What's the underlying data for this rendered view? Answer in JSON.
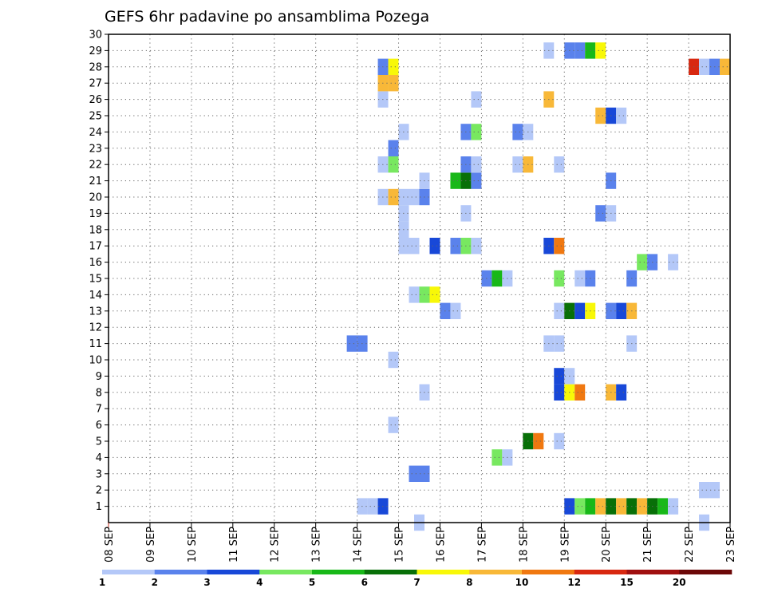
{
  "chart_data": {
    "type": "heatmap",
    "title": "GEFS 6hr padavine po ansamblima Pozega",
    "xlabel": "",
    "ylabel": "",
    "x_ticks": [
      "08 SEP",
      "09 SEP",
      "10 SEP",
      "11 SEP",
      "12 SEP",
      "13 SEP",
      "14 SEP",
      "15 SEP",
      "16 SEP",
      "17 SEP",
      "18 SEP",
      "19 SEP",
      "20 SEP",
      "21 SEP",
      "22 SEP",
      "23 SEP"
    ],
    "y_ticks": [
      "1",
      "2",
      "3",
      "4",
      "5",
      "6",
      "7",
      "8",
      "9",
      "10",
      "11",
      "12",
      "13",
      "14",
      "15",
      "16",
      "17",
      "18",
      "19",
      "20",
      "21",
      "22",
      "23",
      "24",
      "25",
      "26",
      "27",
      "28",
      "29",
      "30"
    ],
    "xlim_days": [
      0,
      15
    ],
    "ylim": [
      0,
      30
    ],
    "grid": true,
    "colorbar": {
      "levels": [
        "1",
        "2",
        "3",
        "4",
        "5",
        "6",
        "7",
        "8",
        "10",
        "12",
        "15",
        "20"
      ],
      "colors": [
        "#b4c8f8",
        "#5a82ec",
        "#1848d8",
        "#78e860",
        "#18b818",
        "#087008",
        "#f8f808",
        "#f8b838",
        "#f07810",
        "#d82810",
        "#a01010",
        "#6c0808"
      ]
    },
    "cells": [
      {
        "x": 6.125,
        "y": 1,
        "c": 0
      },
      {
        "x": 6.375,
        "y": 1,
        "c": 0
      },
      {
        "x": 6.625,
        "y": 1,
        "c": 2
      },
      {
        "x": 7.5,
        "y": 0,
        "c": 0
      },
      {
        "x": 11.125,
        "y": 1,
        "c": 2
      },
      {
        "x": 11.375,
        "y": 1,
        "c": 3
      },
      {
        "x": 11.625,
        "y": 1,
        "c": 4
      },
      {
        "x": 11.875,
        "y": 1,
        "c": 7
      },
      {
        "x": 12.125,
        "y": 1,
        "c": 5
      },
      {
        "x": 12.375,
        "y": 1,
        "c": 7
      },
      {
        "x": 12.625,
        "y": 1,
        "c": 5
      },
      {
        "x": 12.875,
        "y": 1,
        "c": 7
      },
      {
        "x": 13.125,
        "y": 1,
        "c": 5
      },
      {
        "x": 13.375,
        "y": 1,
        "c": 4
      },
      {
        "x": 13.625,
        "y": 1,
        "c": 0
      },
      {
        "x": 14.375,
        "y": 0,
        "c": 0
      },
      {
        "x": 14.625,
        "y": 2,
        "c": 0
      },
      {
        "x": 14.375,
        "y": 2,
        "c": 0
      },
      {
        "x": 7.625,
        "y": 3,
        "c": 1
      },
      {
        "x": 7.375,
        "y": 3,
        "c": 1
      },
      {
        "x": 9.375,
        "y": 4,
        "c": 3
      },
      {
        "x": 9.625,
        "y": 4,
        "c": 0
      },
      {
        "x": 10.125,
        "y": 5,
        "c": 5
      },
      {
        "x": 10.375,
        "y": 5,
        "c": 8
      },
      {
        "x": 10.875,
        "y": 5,
        "c": 0
      },
      {
        "x": 6.875,
        "y": 6,
        "c": 0
      },
      {
        "x": 7.625,
        "y": 8,
        "c": 0
      },
      {
        "x": 10.875,
        "y": 8,
        "c": 2
      },
      {
        "x": 11.125,
        "y": 8,
        "c": 6
      },
      {
        "x": 11.375,
        "y": 8,
        "c": 8
      },
      {
        "x": 12.125,
        "y": 8,
        "c": 7
      },
      {
        "x": 12.375,
        "y": 8,
        "c": 2
      },
      {
        "x": 10.875,
        "y": 9,
        "c": 2
      },
      {
        "x": 11.125,
        "y": 9,
        "c": 0
      },
      {
        "x": 6.875,
        "y": 10,
        "c": 0
      },
      {
        "x": 5.875,
        "y": 11,
        "c": 1
      },
      {
        "x": 6.125,
        "y": 11,
        "c": 1
      },
      {
        "x": 10.625,
        "y": 11,
        "c": 0
      },
      {
        "x": 10.875,
        "y": 11,
        "c": 0
      },
      {
        "x": 12.625,
        "y": 11,
        "c": 0
      },
      {
        "x": 8.125,
        "y": 13,
        "c": 1
      },
      {
        "x": 8.375,
        "y": 13,
        "c": 0
      },
      {
        "x": 10.875,
        "y": 13,
        "c": 0
      },
      {
        "x": 11.125,
        "y": 13,
        "c": 5
      },
      {
        "x": 11.375,
        "y": 13,
        "c": 2
      },
      {
        "x": 11.625,
        "y": 13,
        "c": 6
      },
      {
        "x": 12.125,
        "y": 13,
        "c": 1
      },
      {
        "x": 12.375,
        "y": 13,
        "c": 2
      },
      {
        "x": 12.625,
        "y": 13,
        "c": 7
      },
      {
        "x": 7.375,
        "y": 14,
        "c": 0
      },
      {
        "x": 7.625,
        "y": 14,
        "c": 3
      },
      {
        "x": 7.875,
        "y": 14,
        "c": 6
      },
      {
        "x": 9.125,
        "y": 15,
        "c": 1
      },
      {
        "x": 9.375,
        "y": 15,
        "c": 4
      },
      {
        "x": 9.625,
        "y": 15,
        "c": 0
      },
      {
        "x": 10.875,
        "y": 15,
        "c": 3
      },
      {
        "x": 11.375,
        "y": 15,
        "c": 0
      },
      {
        "x": 11.625,
        "y": 15,
        "c": 1
      },
      {
        "x": 12.625,
        "y": 15,
        "c": 1
      },
      {
        "x": 12.875,
        "y": 16,
        "c": 3
      },
      {
        "x": 13.125,
        "y": 16,
        "c": 1
      },
      {
        "x": 13.625,
        "y": 16,
        "c": 0
      },
      {
        "x": 7.125,
        "y": 17,
        "c": 0
      },
      {
        "x": 7.375,
        "y": 17,
        "c": 0
      },
      {
        "x": 7.875,
        "y": 17,
        "c": 2
      },
      {
        "x": 8.375,
        "y": 17,
        "c": 1
      },
      {
        "x": 8.625,
        "y": 17,
        "c": 3
      },
      {
        "x": 8.875,
        "y": 17,
        "c": 0
      },
      {
        "x": 10.625,
        "y": 17,
        "c": 2
      },
      {
        "x": 10.875,
        "y": 17,
        "c": 8
      },
      {
        "x": 7.125,
        "y": 18,
        "c": 0
      },
      {
        "x": 7.125,
        "y": 19,
        "c": 0
      },
      {
        "x": 8.625,
        "y": 19,
        "c": 0
      },
      {
        "x": 11.875,
        "y": 19,
        "c": 1
      },
      {
        "x": 12.125,
        "y": 19,
        "c": 0
      },
      {
        "x": 6.625,
        "y": 20,
        "c": 0
      },
      {
        "x": 6.875,
        "y": 20,
        "c": 7
      },
      {
        "x": 7.125,
        "y": 20,
        "c": 0
      },
      {
        "x": 7.375,
        "y": 20,
        "c": 0
      },
      {
        "x": 7.625,
        "y": 20,
        "c": 1
      },
      {
        "x": 7.625,
        "y": 21,
        "c": 0
      },
      {
        "x": 8.375,
        "y": 21,
        "c": 4
      },
      {
        "x": 8.625,
        "y": 21,
        "c": 5
      },
      {
        "x": 8.875,
        "y": 21,
        "c": 1
      },
      {
        "x": 12.125,
        "y": 21,
        "c": 1
      },
      {
        "x": 6.625,
        "y": 22,
        "c": 0
      },
      {
        "x": 6.875,
        "y": 22,
        "c": 3
      },
      {
        "x": 8.625,
        "y": 22,
        "c": 1
      },
      {
        "x": 8.875,
        "y": 22,
        "c": 0
      },
      {
        "x": 9.875,
        "y": 22,
        "c": 0
      },
      {
        "x": 10.125,
        "y": 22,
        "c": 7
      },
      {
        "x": 10.875,
        "y": 22,
        "c": 0
      },
      {
        "x": 6.875,
        "y": 23,
        "c": 1
      },
      {
        "x": 7.125,
        "y": 24,
        "c": 0
      },
      {
        "x": 8.625,
        "y": 24,
        "c": 1
      },
      {
        "x": 8.875,
        "y": 24,
        "c": 3
      },
      {
        "x": 9.875,
        "y": 24,
        "c": 1
      },
      {
        "x": 10.125,
        "y": 24,
        "c": 0
      },
      {
        "x": 11.875,
        "y": 25,
        "c": 7
      },
      {
        "x": 12.125,
        "y": 25,
        "c": 2
      },
      {
        "x": 12.375,
        "y": 25,
        "c": 0
      },
      {
        "x": 6.625,
        "y": 26,
        "c": 0
      },
      {
        "x": 8.875,
        "y": 26,
        "c": 0
      },
      {
        "x": 10.625,
        "y": 26,
        "c": 7
      },
      {
        "x": 6.625,
        "y": 27,
        "c": 7
      },
      {
        "x": 6.875,
        "y": 27,
        "c": 7
      },
      {
        "x": 6.625,
        "y": 28,
        "c": 1
      },
      {
        "x": 6.875,
        "y": 28,
        "c": 6
      },
      {
        "x": 14.125,
        "y": 28,
        "c": 9
      },
      {
        "x": 14.375,
        "y": 28,
        "c": 0
      },
      {
        "x": 14.625,
        "y": 28,
        "c": 1
      },
      {
        "x": 14.875,
        "y": 28,
        "c": 7
      },
      {
        "x": 10.625,
        "y": 29,
        "c": 0
      },
      {
        "x": 11.125,
        "y": 29,
        "c": 1
      },
      {
        "x": 11.375,
        "y": 29,
        "c": 1
      },
      {
        "x": 11.625,
        "y": 29,
        "c": 4
      },
      {
        "x": 11.875,
        "y": 29,
        "c": 6
      }
    ]
  }
}
